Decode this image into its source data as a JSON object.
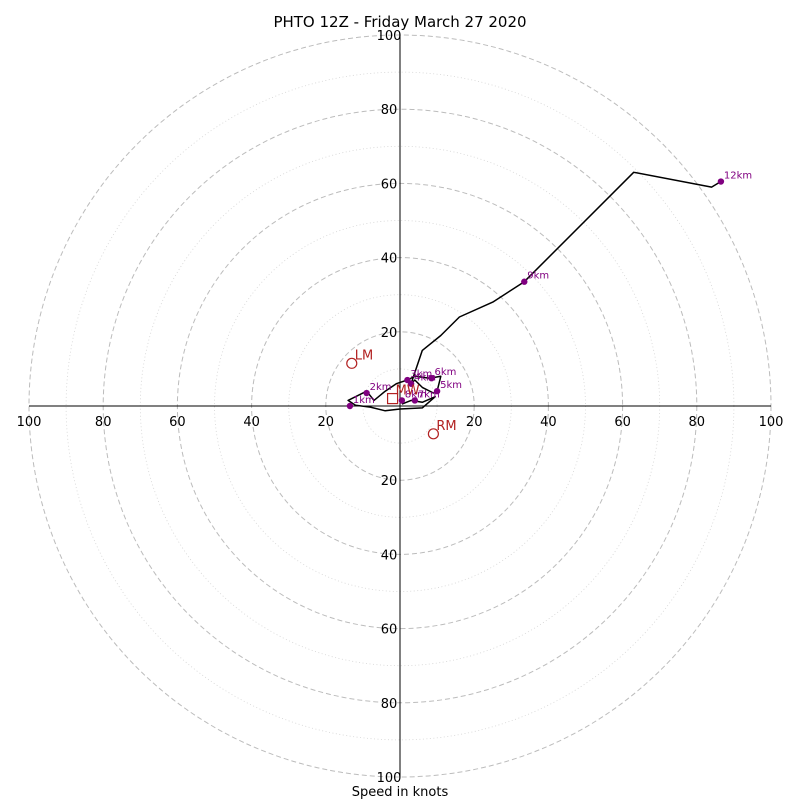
{
  "chart_data": {
    "type": "hodograph",
    "title": "PHTO 12Z - Friday March 27 2020",
    "xlabel": "Speed in knots",
    "ylabel": "",
    "ring_max": 100,
    "ring_major_step": 20,
    "ring_minor_step": 10,
    "tick_labels": [
      "20",
      "40",
      "60",
      "80",
      "100"
    ],
    "grid": true,
    "colors": {
      "trace": "#000000",
      "height_points": "#800080",
      "motion": "#b22222",
      "grid": "#bbbbbb"
    },
    "trace": [
      {
        "u": 0.5,
        "v": 0.5
      },
      {
        "u": 3,
        "v": 1.5
      },
      {
        "u": 6,
        "v": 1
      },
      {
        "u": 9.5,
        "v": 2.5
      },
      {
        "u": 6,
        "v": -0.5
      },
      {
        "u": 0,
        "v": -0.8
      },
      {
        "u": -4,
        "v": -1.3
      },
      {
        "u": -8,
        "v": -0.3
      },
      {
        "u": -12,
        "v": 0.2
      },
      {
        "u": -14,
        "v": 1.5
      },
      {
        "u": -13,
        "v": 2
      },
      {
        "u": -9,
        "v": 4
      },
      {
        "u": -7,
        "v": 1.5
      },
      {
        "u": -4,
        "v": 4
      },
      {
        "u": -1,
        "v": 6
      },
      {
        "u": 2,
        "v": 7
      },
      {
        "u": 4,
        "v": 8
      },
      {
        "u": 8,
        "v": 7.5
      },
      {
        "u": 11,
        "v": 8
      },
      {
        "u": 10,
        "v": 4
      },
      {
        "u": 9,
        "v": 3.5
      },
      {
        "u": 6,
        "v": 5
      },
      {
        "u": 4,
        "v": 7
      },
      {
        "u": 3,
        "v": 6
      },
      {
        "u": 4,
        "v": 9
      },
      {
        "u": 6,
        "v": 15
      },
      {
        "u": 11,
        "v": 19
      },
      {
        "u": 16,
        "v": 24
      },
      {
        "u": 25,
        "v": 28
      },
      {
        "u": 33.5,
        "v": 33.5
      },
      {
        "u": 63,
        "v": 63
      },
      {
        "u": 84,
        "v": 59
      },
      {
        "u": 86.5,
        "v": 60.5
      }
    ],
    "height_points": [
      {
        "label": "1km",
        "u": -13.5,
        "v": 0
      },
      {
        "label": "2km",
        "u": -9,
        "v": 3.5
      },
      {
        "label": "3km",
        "u": 2,
        "v": 7
      },
      {
        "label": "4km",
        "u": 3,
        "v": 6
      },
      {
        "label": "5km",
        "u": 10,
        "v": 4
      },
      {
        "label": "6km",
        "u": 8.5,
        "v": 7.5
      },
      {
        "label": "7km",
        "u": 4,
        "v": 1.5
      },
      {
        "label": "8km",
        "u": 0.5,
        "v": 1.5
      },
      {
        "label": "9km",
        "u": 33.5,
        "v": 33.5
      },
      {
        "label": "12km",
        "u": 86.5,
        "v": 60.5
      }
    ],
    "storm_motion": [
      {
        "label": "LM",
        "u": -13,
        "v": 11.5,
        "marker": "circle"
      },
      {
        "label": "RM",
        "u": 9,
        "v": -7.5,
        "marker": "circle"
      },
      {
        "label": "MW",
        "u": -2,
        "v": 2,
        "marker": "square"
      }
    ]
  }
}
